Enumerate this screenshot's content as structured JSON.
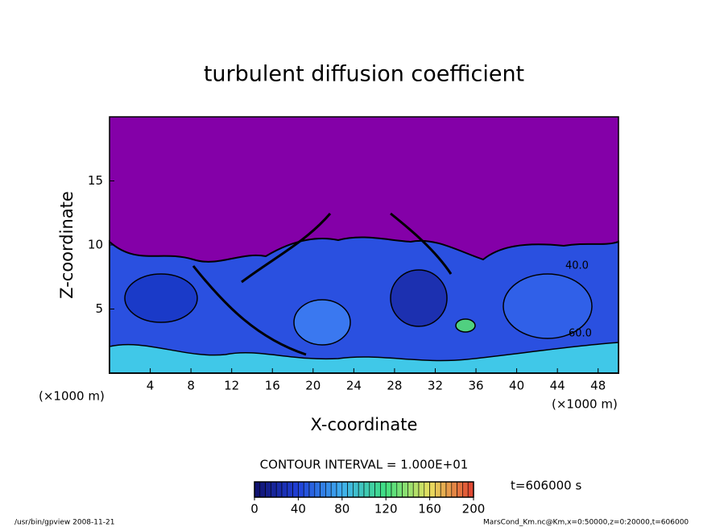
{
  "chart_data": {
    "type": "contour",
    "title": "turbulent diffusion coefficient",
    "x_label": "X-coordinate",
    "y_label": "Z-coordinate",
    "x_unit": "(×1000 m)",
    "y_unit": "(×1000 m)",
    "xlim": [
      0,
      50
    ],
    "xticks": [
      4,
      8,
      12,
      16,
      20,
      24,
      28,
      32,
      36,
      40,
      44,
      48
    ],
    "ylim": [
      0,
      20
    ],
    "yticks": [
      5,
      10,
      15
    ],
    "contour_interval": "CONTOUR INTERVAL = 1.000E+01",
    "colorbar": {
      "clim": [
        0,
        200
      ],
      "ticks": [
        0,
        40,
        80,
        120,
        160,
        200
      ],
      "colors": [
        "#10106a",
        "#2040d8",
        "#40b0f0",
        "#40e080",
        "#e8e060",
        "#e04030"
      ]
    },
    "time_label": "t=606000 s",
    "annotations": [
      "40.0",
      "60.0"
    ]
  },
  "footer": {
    "left": "/usr/bin/gpview  2008-11-21",
    "right": "MarsCond_Km.nc@Km,x=0:50000,z=0:20000,t=606000"
  }
}
